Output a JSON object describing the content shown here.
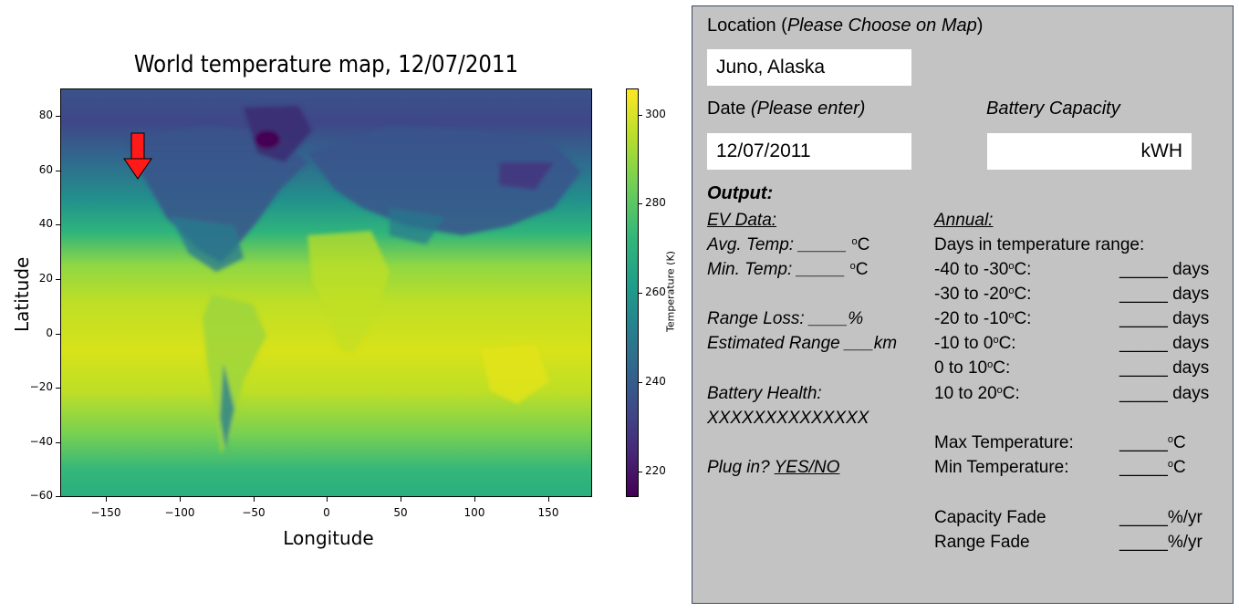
{
  "map": {
    "title": "World temperature map, 12/07/2011",
    "xlabel": "Longitude",
    "ylabel": "Latitude",
    "colorbar_label": "Temperature (K)",
    "x_ticks": [
      "−150",
      "−100",
      "−50",
      "0",
      "50",
      "100",
      "150"
    ],
    "y_ticks": [
      "80",
      "60",
      "40",
      "20",
      "0",
      "−20",
      "−40",
      "−60"
    ],
    "colorbar_ticks": [
      "300",
      "280",
      "260",
      "240",
      "220"
    ],
    "marker": "red-arrow",
    "colormap": "viridis"
  },
  "form": {
    "location_label": "Location (",
    "location_hint": "Please Choose on Map",
    "location_close": ")",
    "location_value": "Juno, Alaska",
    "date_label": "Date ",
    "date_hint": "(Please enter)",
    "date_value": "12/07/2011",
    "battery_label": "Battery Capacity",
    "battery_unit": "kWH",
    "output_label": "Output:",
    "ev_data_label": "EV Data:",
    "avg_temp": "Avg. Temp: _____ ",
    "min_temp": "Min. Temp: _____ ",
    "deg_o": "o",
    "deg_c": "C",
    "range_loss": "Range Loss: ____%",
    "est_range": "Estimated Range ___km",
    "battery_health": "Battery Health:",
    "battery_health_value": "XXXXXXXXXXXXXX",
    "plug_in": "Plug in? ",
    "plug_in_options": "YES/NO",
    "annual_label": "Annual:",
    "days_in_range": "Days in temperature range:",
    "ranges": [
      {
        "pre": "-40 to -30",
        "post": "C:"
      },
      {
        "pre": "-30 to -20",
        "post": "C:"
      },
      {
        "pre": "-20 to -10",
        "post": "C:"
      },
      {
        "pre": "-10 to 0",
        "post": "C:"
      },
      {
        "pre": "0 to 10",
        "post": "C:"
      },
      {
        "pre": "10 to 20",
        "post": "C:"
      }
    ],
    "days_blank": "_____ days",
    "max_temp": "Max Temperature:",
    "min_temperature": "Min Temperature:",
    "temp_blank": "_____",
    "capacity_fade": "Capacity Fade",
    "range_fade": "Range Fade",
    "fade_blank": "_____%/yr"
  }
}
